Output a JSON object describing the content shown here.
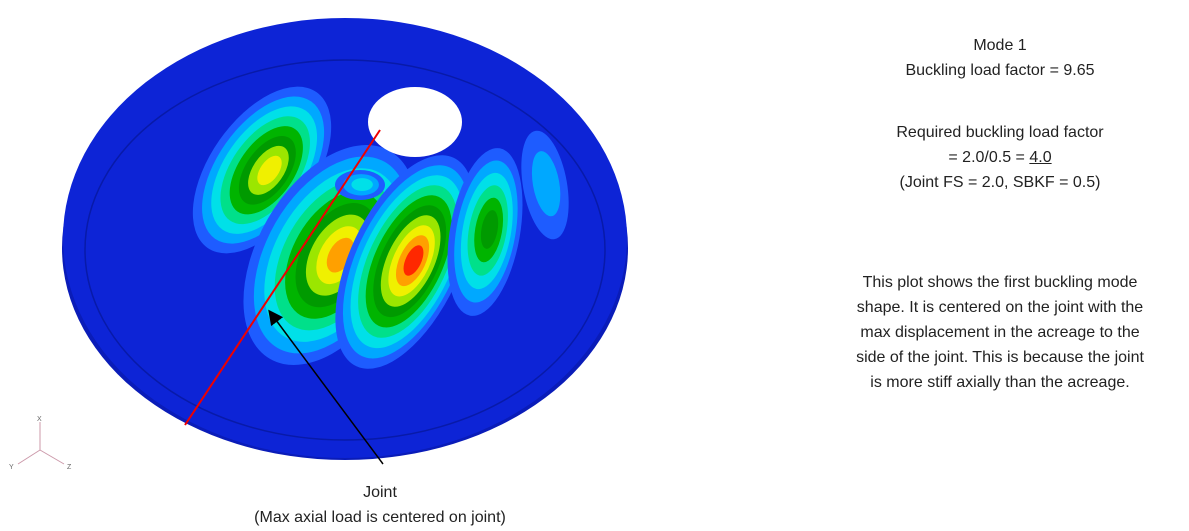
{
  "mode": {
    "title": "Mode 1",
    "load_factor": "Buckling load factor = 9.65"
  },
  "required": {
    "title": "Required buckling load factor",
    "equation": "= 2.0/0.5 =",
    "result": "4.0",
    "note": "(Joint FS = 2.0, SBKF = 0.5)"
  },
  "description": {
    "lines": [
      "This plot shows the first buckling mode",
      "shape. It is centered on the joint with the",
      "max displacement in the acreage to the",
      "side of the joint. This is because the joint",
      "is more stiff axially than the acreage."
    ]
  },
  "callout": {
    "label": "Joint",
    "note": "(Max axial load is centered on joint)"
  },
  "triad": {
    "x": "X",
    "y": "Y",
    "z": "Z"
  }
}
